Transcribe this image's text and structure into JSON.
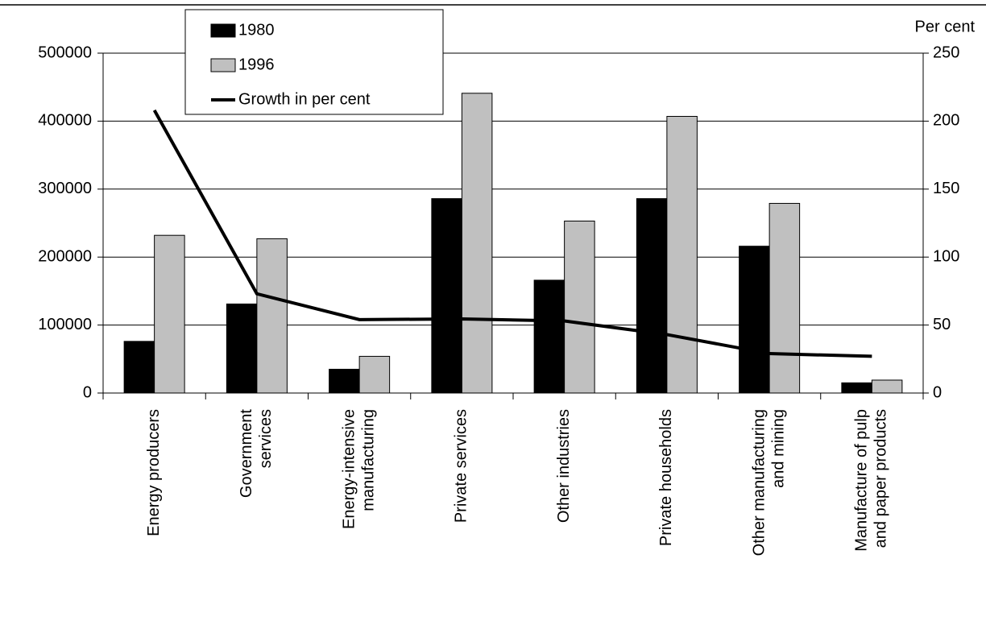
{
  "chart_data": {
    "type": "bar",
    "categories": [
      [
        "Energy producers"
      ],
      [
        "Government",
        "services"
      ],
      [
        "Energy-intensive",
        "manufacturing"
      ],
      [
        "Private services"
      ],
      [
        "Other industries"
      ],
      [
        "Private households"
      ],
      [
        "Other manufacturing",
        "and mining"
      ],
      [
        "Manufacture of pulp",
        "and paper products"
      ]
    ],
    "series": [
      {
        "name": "1980",
        "color": "#000000",
        "values": [
          76000,
          131000,
          35000,
          286000,
          166000,
          286000,
          216000,
          15000
        ]
      },
      {
        "name": "1996",
        "color": "#c0c0c0",
        "values": [
          232000,
          227000,
          54000,
          441000,
          253000,
          407000,
          279000,
          19000
        ]
      },
      {
        "name": "Growth in per cent",
        "type": "line",
        "axis": "y2",
        "color": "#000000",
        "values": [
          208,
          73,
          54,
          54.5,
          53,
          43,
          29,
          27
        ]
      }
    ],
    "ylim": [
      0,
      500000
    ],
    "yticks": [
      0,
      100000,
      200000,
      300000,
      400000,
      500000
    ],
    "y2label": "Per cent",
    "y2lim": [
      0,
      250
    ],
    "y2ticks": [
      0,
      50,
      100,
      150,
      200,
      250
    ],
    "grid": true,
    "legend": "top-left"
  }
}
